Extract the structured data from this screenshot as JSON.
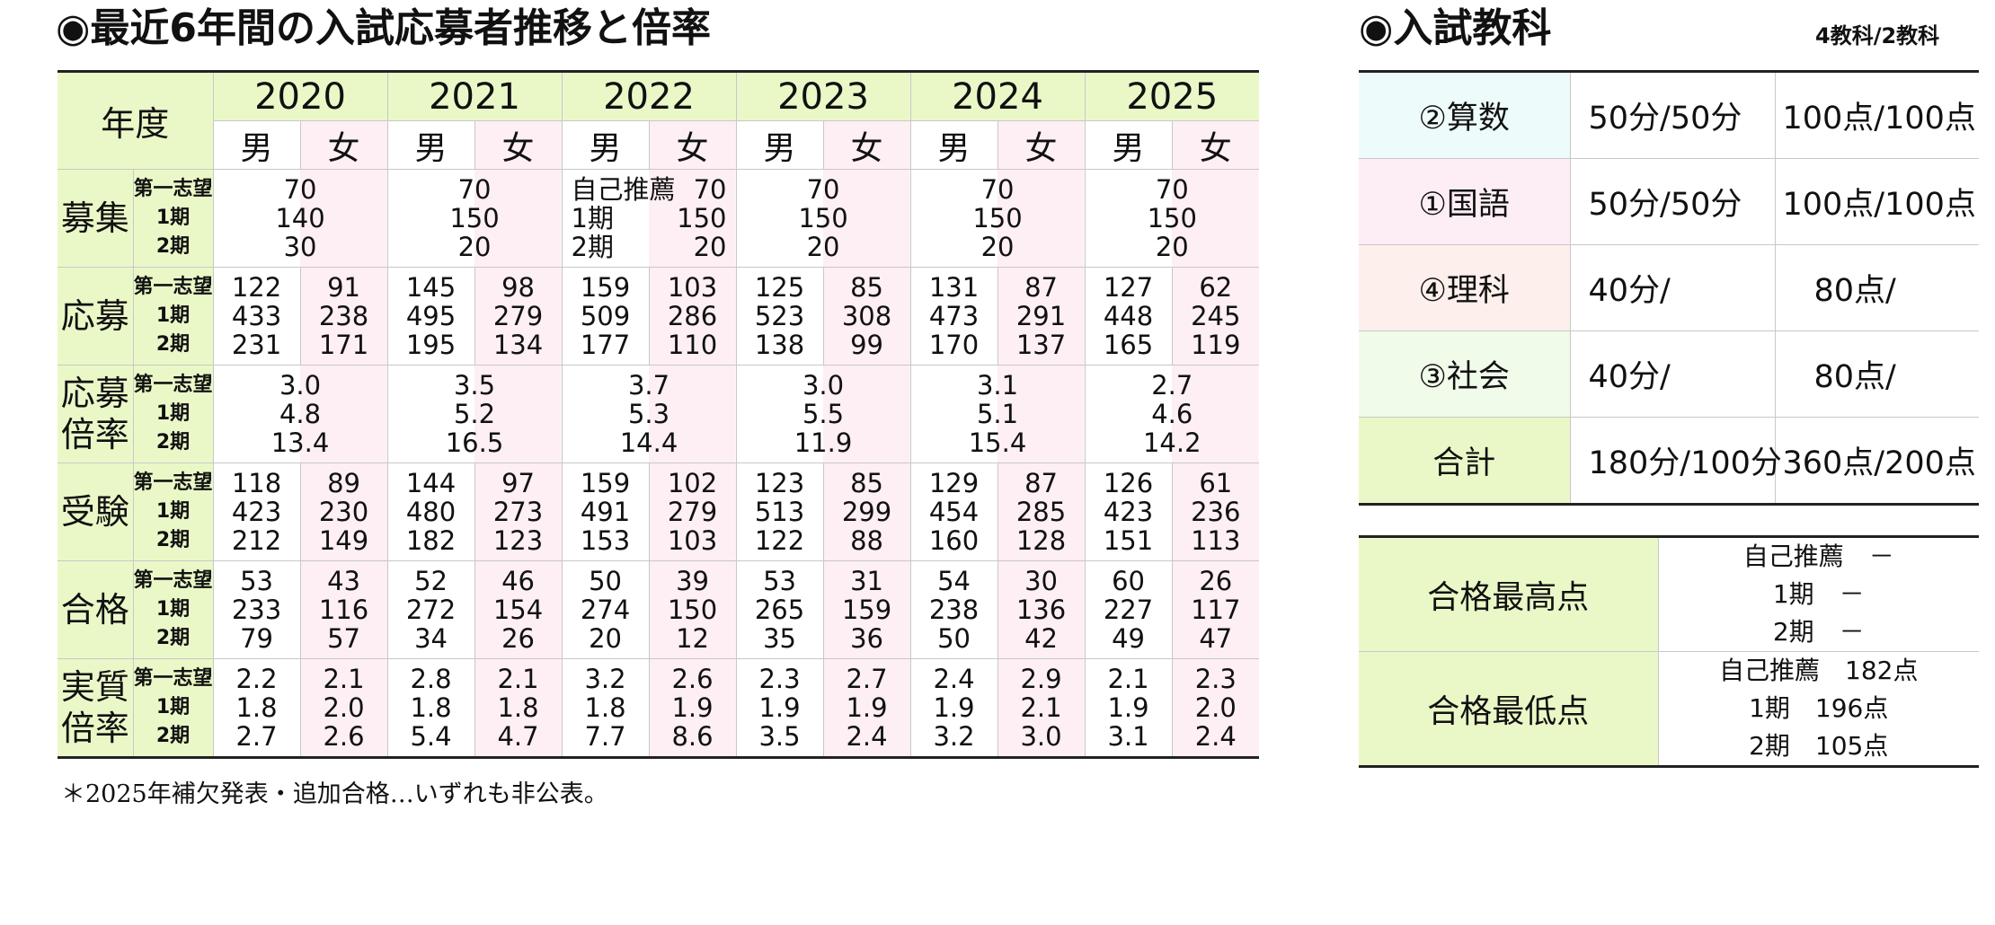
{
  "left_title": "◉最近6年間の入試応募者推移と倍率",
  "right_title": "◉入試教科",
  "subjects_note": "4教科/2教科",
  "header": {
    "year_label": "年度",
    "years": [
      "2020",
      "2021",
      "2022",
      "2023",
      "2024",
      "2025"
    ],
    "male": "男",
    "female": "女"
  },
  "sub_labels": [
    "第一志望",
    "1期",
    "2期"
  ],
  "rows": {
    "boshu": {
      "label": "募集",
      "merged": [
        [
          "70",
          "140",
          "30"
        ],
        [
          "70",
          "150",
          "20"
        ],
        null,
        [
          "70",
          "150",
          "20"
        ],
        [
          "70",
          "150",
          "20"
        ],
        [
          "70",
          "150",
          "20"
        ]
      ],
      "special_2022": [
        [
          "自己推薦",
          "70"
        ],
        [
          "1期",
          "150"
        ],
        [
          "2期",
          "20"
        ]
      ]
    },
    "oubo": {
      "label": "応募",
      "cells": [
        [
          [
            "122",
            "433",
            "231"
          ],
          [
            "91",
            "238",
            "171"
          ]
        ],
        [
          [
            "145",
            "495",
            "195"
          ],
          [
            "98",
            "279",
            "134"
          ]
        ],
        [
          [
            "159",
            "509",
            "177"
          ],
          [
            "103",
            "286",
            "110"
          ]
        ],
        [
          [
            "125",
            "523",
            "138"
          ],
          [
            "85",
            "308",
            "99"
          ]
        ],
        [
          [
            "131",
            "473",
            "170"
          ],
          [
            "87",
            "291",
            "137"
          ]
        ],
        [
          [
            "127",
            "448",
            "165"
          ],
          [
            "62",
            "245",
            "119"
          ]
        ]
      ]
    },
    "oubo_bairitsu": {
      "label_line1": "応募",
      "label_line2": "倍率",
      "merged": [
        [
          "3.0",
          "4.8",
          "13.4"
        ],
        [
          "3.5",
          "5.2",
          "16.5"
        ],
        [
          "3.7",
          "5.3",
          "14.4"
        ],
        [
          "3.0",
          "5.5",
          "11.9"
        ],
        [
          "3.1",
          "5.1",
          "15.4"
        ],
        [
          "2.7",
          "4.6",
          "14.2"
        ]
      ]
    },
    "juken": {
      "label": "受験",
      "cells": [
        [
          [
            "118",
            "423",
            "212"
          ],
          [
            "89",
            "230",
            "149"
          ]
        ],
        [
          [
            "144",
            "480",
            "182"
          ],
          [
            "97",
            "273",
            "123"
          ]
        ],
        [
          [
            "159",
            "491",
            "153"
          ],
          [
            "102",
            "279",
            "103"
          ]
        ],
        [
          [
            "123",
            "513",
            "122"
          ],
          [
            "85",
            "299",
            "88"
          ]
        ],
        [
          [
            "129",
            "454",
            "160"
          ],
          [
            "87",
            "285",
            "128"
          ]
        ],
        [
          [
            "126",
            "423",
            "151"
          ],
          [
            "61",
            "236",
            "113"
          ]
        ]
      ]
    },
    "goukaku": {
      "label": "合格",
      "cells": [
        [
          [
            "53",
            "233",
            "79"
          ],
          [
            "43",
            "116",
            "57"
          ]
        ],
        [
          [
            "52",
            "272",
            "34"
          ],
          [
            "46",
            "154",
            "26"
          ]
        ],
        [
          [
            "50",
            "274",
            "20"
          ],
          [
            "39",
            "150",
            "12"
          ]
        ],
        [
          [
            "53",
            "265",
            "35"
          ],
          [
            "31",
            "159",
            "36"
          ]
        ],
        [
          [
            "54",
            "238",
            "50"
          ],
          [
            "30",
            "136",
            "42"
          ]
        ],
        [
          [
            "60",
            "227",
            "49"
          ],
          [
            "26",
            "117",
            "47"
          ]
        ]
      ]
    },
    "jisshitsu": {
      "label_line1": "実質",
      "label_line2": "倍率",
      "cells": [
        [
          [
            "2.2",
            "1.8",
            "2.7"
          ],
          [
            "2.1",
            "2.0",
            "2.6"
          ]
        ],
        [
          [
            "2.8",
            "1.8",
            "5.4"
          ],
          [
            "2.1",
            "1.8",
            "4.7"
          ]
        ],
        [
          [
            "3.2",
            "1.8",
            "7.7"
          ],
          [
            "2.6",
            "1.9",
            "8.6"
          ]
        ],
        [
          [
            "2.3",
            "1.9",
            "3.5"
          ],
          [
            "2.7",
            "1.9",
            "2.4"
          ]
        ],
        [
          [
            "2.4",
            "1.9",
            "3.2"
          ],
          [
            "2.9",
            "2.1",
            "3.0"
          ]
        ],
        [
          [
            "2.1",
            "1.9",
            "3.1"
          ],
          [
            "2.3",
            "2.0",
            "2.4"
          ]
        ]
      ]
    }
  },
  "footnote": "＊2025年補欠発表・追加合格…いずれも非公表。",
  "subjects": [
    {
      "name": "②算数",
      "time": "50分/50分",
      "points": "100点/100点",
      "color": "#eefbfb"
    },
    {
      "name": "①国語",
      "time": "50分/50分",
      "points": "100点/100点",
      "color": "#fdeef5"
    },
    {
      "name": "④理科",
      "time": "40分/",
      "points": "　80点/",
      "color": "#fdf0ec"
    },
    {
      "name": "③社会",
      "time": "40分/",
      "points": "　80点/",
      "color": "#f1fbea"
    },
    {
      "name": "合計",
      "time": "180分/100分",
      "points": "360点/200点",
      "color": "#eaf8c8"
    }
  ],
  "pass_scores": [
    {
      "label": "合格最高点",
      "lines": [
        "自己推薦　－",
        "1期　－",
        "2期　－"
      ]
    },
    {
      "label": "合格最低点",
      "lines": [
        "自己推薦　182点",
        "1期　196点",
        "2期　105点"
      ]
    }
  ]
}
